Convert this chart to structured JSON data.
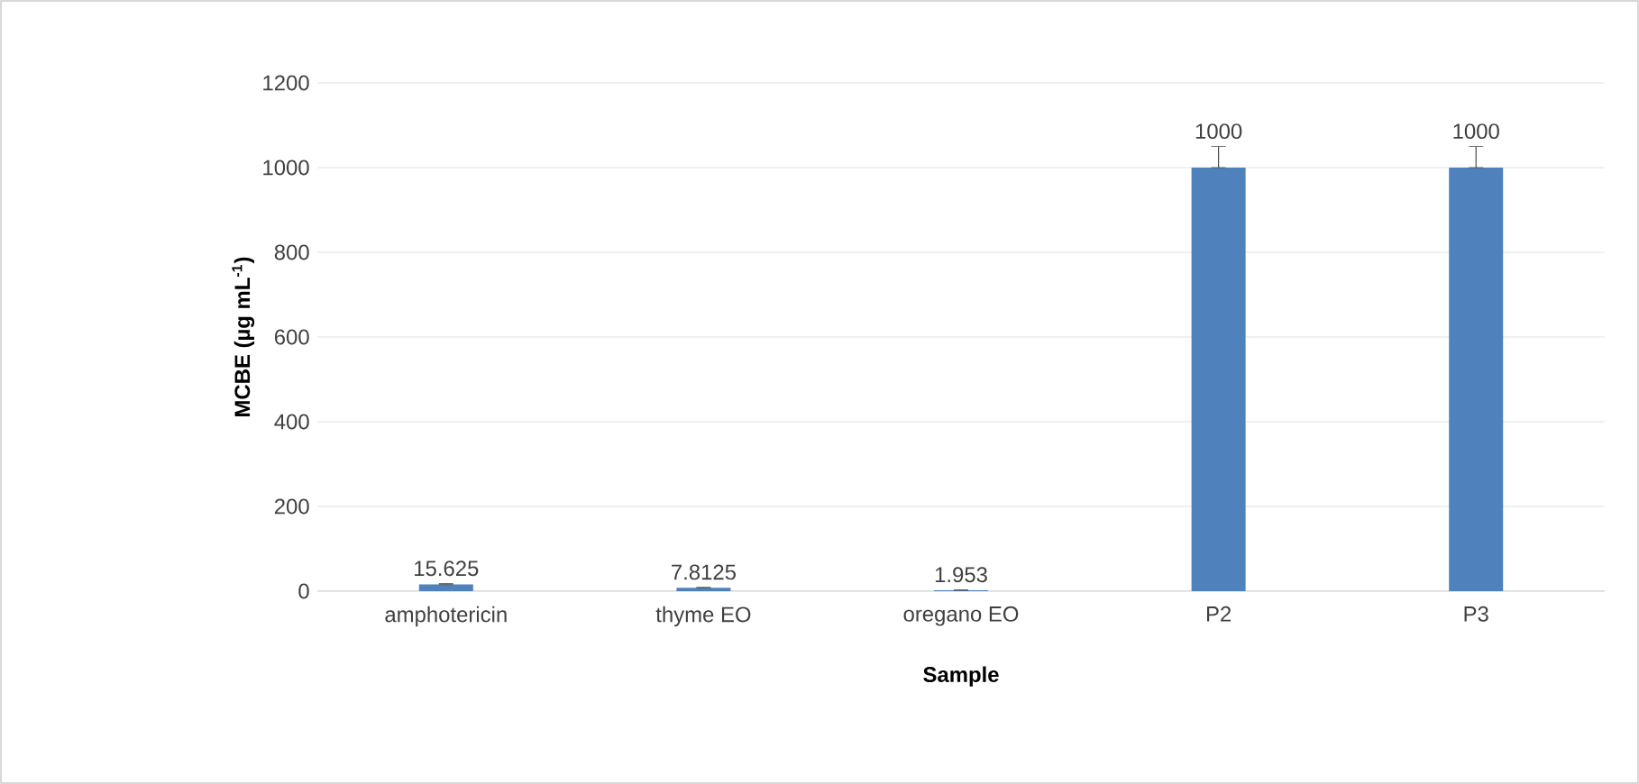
{
  "chart_data": {
    "type": "bar",
    "xlabel": "Sample",
    "ylabel": "MCBE (µg mL$^{-1}$)",
    "categories": [
      "amphotericin",
      "thyme EO",
      "oregano EO",
      "P2",
      "P3"
    ],
    "values": [
      15.625,
      7.8125,
      1.953,
      1000,
      1000
    ],
    "errors": [
      [
        15.625,
        18
      ],
      [
        7.8125,
        9
      ],
      [
        1.953,
        3
      ],
      [
        1000,
        1050
      ],
      [
        1000,
        1050
      ]
    ],
    "color": "#4f81bd",
    "data_labels": true,
    "ylim": [
      0,
      1200
    ],
    "yticks": [
      0,
      200,
      400,
      600,
      800,
      1000,
      1200
    ],
    "grid": "y"
  }
}
